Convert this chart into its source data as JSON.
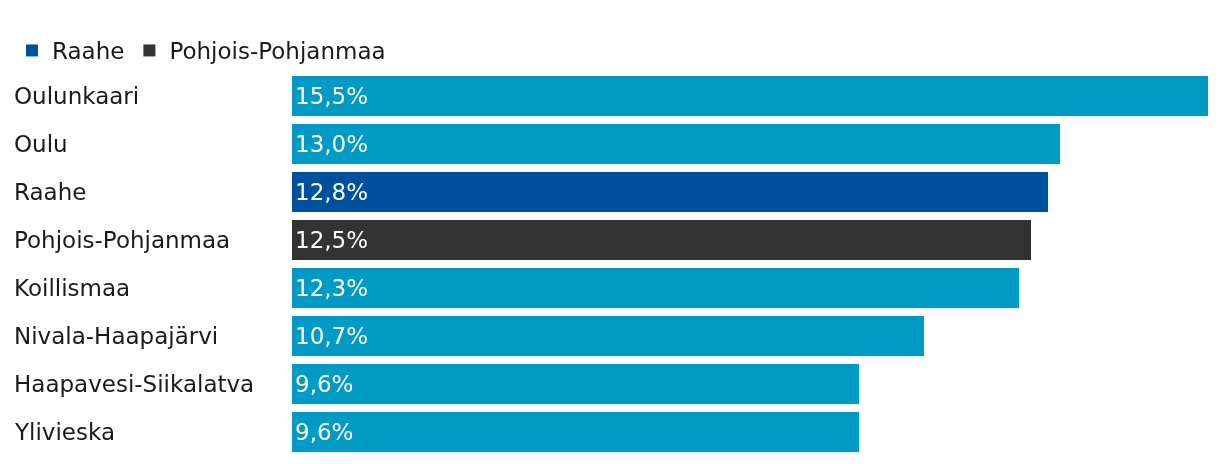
{
  "chart_data": {
    "type": "bar",
    "orientation": "horizontal",
    "stacked": true,
    "legend": "top left",
    "categories": [
      "Oulunkaari",
      "Oulu",
      "Raahe",
      "Pohjois-Pohjanmaa",
      "Koillismaa",
      "Nivala-Haapajärvi",
      "Haapavesi-Siikalatva",
      "Ylivieska"
    ],
    "series": [
      {
        "name": "Raahe",
        "color": "#0050a0",
        "values": [
          null,
          null,
          12.8,
          null,
          null,
          null,
          null,
          null
        ],
        "value_labels": [
          null,
          null,
          "12,8%",
          null,
          null,
          null,
          null,
          null
        ]
      },
      {
        "name": "Pohjois-Pohjanmaa",
        "color": "#333333",
        "values": [
          null,
          null,
          null,
          12.5,
          null,
          null,
          null,
          null
        ],
        "value_labels": [
          null,
          null,
          null,
          "12,5%",
          null,
          null,
          null,
          null
        ]
      },
      {
        "color": "#009bc4",
        "values": [
          15.5,
          13.0,
          null,
          null,
          12.3,
          10.7,
          9.6,
          9.6
        ],
        "value_labels": [
          "15,5%",
          "13,0%",
          null,
          null,
          "12,3%",
          "10,7%",
          "9,6%",
          "9,6%"
        ]
      }
    ]
  }
}
